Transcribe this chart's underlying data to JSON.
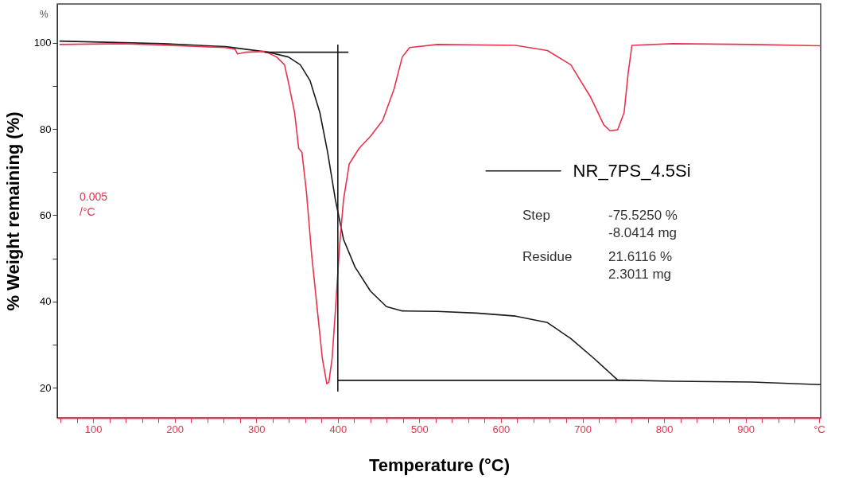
{
  "chart_data": {
    "type": "line",
    "xlabel": "Temperature (°C)",
    "ylabel": "% Weight remaining (%)",
    "xlim": [
      56,
      992
    ],
    "ylim": [
      13,
      109
    ],
    "xticks": [
      {
        "value": 60,
        "label": null
      },
      {
        "value": 80,
        "label": null
      },
      100,
      {
        "value": 120,
        "label": null
      },
      {
        "value": 140,
        "label": null
      },
      {
        "value": 160,
        "label": null
      },
      {
        "value": 180,
        "label": null
      },
      200,
      {
        "value": 220,
        "label": null
      },
      {
        "value": 240,
        "label": null
      },
      {
        "value": 260,
        "label": null
      },
      {
        "value": 280,
        "label": null
      },
      300,
      {
        "value": 320,
        "label": null
      },
      {
        "value": 340,
        "label": null
      },
      {
        "value": 360,
        "label": null
      },
      {
        "value": 380,
        "label": null
      },
      400,
      {
        "value": 420,
        "label": null
      },
      {
        "value": 440,
        "label": null
      },
      {
        "value": 460,
        "label": null
      },
      {
        "value": 480,
        "label": null
      },
      500,
      {
        "value": 520,
        "label": null
      },
      {
        "value": 540,
        "label": null
      },
      {
        "value": 560,
        "label": null
      },
      {
        "value": 580,
        "label": null
      },
      600,
      {
        "value": 620,
        "label": null
      },
      {
        "value": 640,
        "label": null
      },
      {
        "value": 660,
        "label": null
      },
      {
        "value": 680,
        "label": null
      },
      700,
      {
        "value": 720,
        "label": null
      },
      {
        "value": 740,
        "label": null
      },
      {
        "value": 760,
        "label": null
      },
      {
        "value": 780,
        "label": null
      },
      800,
      {
        "value": 820,
        "label": null
      },
      {
        "value": 840,
        "label": null
      },
      {
        "value": 860,
        "label": null
      },
      {
        "value": 880,
        "label": null
      },
      900,
      {
        "value": 920,
        "label": null
      },
      {
        "value": 940,
        "label": null
      },
      {
        "value": 960,
        "label": null
      },
      {
        "value": 990,
        "label": "°C"
      }
    ],
    "yticks": [
      20,
      {
        "value": 30,
        "label": null
      },
      40,
      {
        "value": 50,
        "label": null
      },
      60,
      {
        "value": 70,
        "label": null
      },
      80,
      {
        "value": 90,
        "label": null
      },
      100
    ],
    "grid": false,
    "legend": "right",
    "marker": "none",
    "line_style": "solid",
    "annotations": [
      "%",
      "0.005",
      "/°C",
      "Step",
      "-75.5250 %",
      "-8.0414 mg",
      "Residue",
      "21.6116 %",
      "2.3011 mg"
    ],
    "series": [
      {
        "name": "NR_7PS_4.5Si",
        "color": "#1a1a1a",
        "x": [
          58.7,
          185.6,
          262.5,
          315.4,
          339.4,
          354,
          366,
          378,
          387.5,
          397,
          407,
          421,
          440,
          459.6,
          479,
          522,
          570,
          618,
          657,
          685.6,
          714,
          743,
          758,
          810.6,
          907,
          992
        ],
        "values": [
          100.4,
          99.8,
          99.1,
          97.8,
          96.7,
          94.9,
          91.2,
          83.8,
          74.6,
          63.6,
          54.4,
          48,
          42.4,
          38.8,
          37.8,
          37.7,
          37.3,
          36.6,
          35.1,
          31.4,
          26.8,
          21.8,
          21.7,
          21.5,
          21.3,
          20.7
        ]
      },
      {
        "color": "#e8334f",
        "x": [
          58.7,
          137.5,
          205,
          262,
          274,
          277,
          286.5,
          310.6,
          325,
          334.6,
          339,
          347,
          352,
          356,
          361.5,
          368,
          375,
          381,
          386.5,
          389,
          393,
          397,
          402,
          407,
          414,
          426,
          440,
          455,
          469,
          479,
          488,
          522,
          618,
          657,
          685.6,
          709.6,
          726,
          733.7,
          743,
          751,
          756,
          760.6,
          810.6,
          907,
          992
        ],
        "values": [
          99.6,
          99.8,
          99.3,
          98.9,
          98.5,
          97.4,
          97.8,
          98,
          96.7,
          94.9,
          91.2,
          83.8,
          75.5,
          74.6,
          65.4,
          50.7,
          37.8,
          26.8,
          20.9,
          21.3,
          26.8,
          37.8,
          52.6,
          63.6,
          71.9,
          75.5,
          78.3,
          82,
          89.3,
          96.7,
          98.9,
          99.6,
          99.4,
          98.2,
          94.9,
          87.5,
          81,
          79.6,
          79.8,
          83.8,
          93,
          99.4,
          99.8,
          99.6,
          99.3
        ]
      },
      {
        "color": "#1a1a1a",
        "x": [
          310,
          413
        ],
        "values": [
          97.8,
          97.8
        ]
      },
      {
        "color": "#1a1a1a",
        "x": [
          400,
          400
        ],
        "values": [
          99.6,
          19.1
        ]
      },
      {
        "color": "#1a1a1a",
        "x": [
          400,
          758
        ],
        "values": [
          21.7,
          21.7
        ]
      }
    ]
  }
}
